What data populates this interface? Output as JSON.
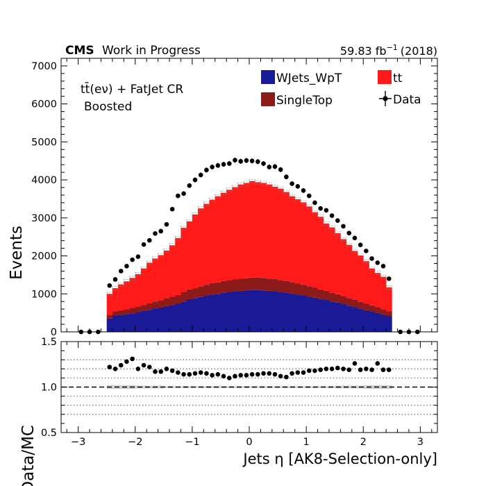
{
  "header": {
    "cms_label": "CMS",
    "cms_suffix": "Work in Progress",
    "lumi_value": "59.83 fb",
    "lumi_exponent": "−1",
    "lumi_year": "(2018)"
  },
  "region": {
    "line1_main": "tt̄(eν) + FatJet CR",
    "line2": "Boosted"
  },
  "chart_data": {
    "type": "bar",
    "xlabel": "Jets η [AK8-Selection-only]",
    "ylabel": "Events",
    "ratio_ylabel": "Data/MC",
    "xlim": [
      -3.3,
      3.3
    ],
    "ylim": [
      0,
      7200
    ],
    "ratio_ylim": [
      0.5,
      1.5
    ],
    "x_ticks": [
      "−3",
      "−2",
      "−1",
      "0",
      "1",
      "2",
      "3"
    ],
    "y_ticks": [
      "0",
      "1000",
      "2000",
      "3000",
      "4000",
      "5000",
      "6000",
      "7000"
    ],
    "ratio_y_ticks": [
      "0.5",
      "1.0",
      "1.5"
    ],
    "ratio_gridlines": [
      0.7,
      0.8,
      0.9,
      1.1,
      1.2,
      1.3
    ],
    "legend_position": "top-right",
    "bin_edges": [
      -2.5,
      -2.4,
      -2.3,
      -2.2,
      -2.1,
      -2.0,
      -1.9,
      -1.8,
      -1.7,
      -1.6,
      -1.5,
      -1.4,
      -1.3,
      -1.2,
      -1.1,
      -1.0,
      -0.9,
      -0.8,
      -0.7,
      -0.6,
      -0.5,
      -0.4,
      -0.3,
      -0.2,
      -0.1,
      0.0,
      0.1,
      0.2,
      0.3,
      0.4,
      0.5,
      0.6,
      0.7,
      0.8,
      0.9,
      1.0,
      1.1,
      1.2,
      1.3,
      1.4,
      1.5,
      1.6,
      1.7,
      1.8,
      1.9,
      2.0,
      2.1,
      2.2,
      2.3,
      2.4,
      2.5
    ],
    "series": [
      {
        "name": "WJets_WpT",
        "color": "#1a1a96",
        "legend_swatch": "#1a1a96",
        "values": [
          350,
          430,
          450,
          470,
          490,
          520,
          550,
          580,
          620,
          640,
          680,
          710,
          740,
          800,
          860,
          880,
          920,
          950,
          980,
          1000,
          1030,
          1050,
          1060,
          1080,
          1090,
          1100,
          1100,
          1090,
          1080,
          1070,
          1050,
          1030,
          1010,
          980,
          960,
          930,
          900,
          870,
          840,
          800,
          770,
          730,
          690,
          650,
          610,
          570,
          540,
          500,
          460,
          420
        ]
      },
      {
        "name": "SingleTop",
        "color": "#8b1a1a",
        "legend_swatch": "#8b1a1a",
        "values": [
          100,
          110,
          120,
          130,
          140,
          150,
          160,
          170,
          180,
          190,
          210,
          220,
          230,
          250,
          260,
          270,
          280,
          290,
          300,
          300,
          310,
          310,
          320,
          320,
          320,
          330,
          330,
          330,
          320,
          320,
          310,
          310,
          300,
          290,
          280,
          270,
          260,
          250,
          240,
          230,
          220,
          210,
          200,
          190,
          180,
          170,
          160,
          150,
          140,
          120
        ]
      },
      {
        "name": "tt",
        "color": "#ff1a1a",
        "legend_swatch": "#ff1a1a",
        "values": [
          550,
          610,
          680,
          730,
          790,
          850,
          960,
          1070,
          1130,
          1190,
          1250,
          1350,
          1500,
          1690,
          1790,
          1940,
          2050,
          2130,
          2200,
          2270,
          2320,
          2380,
          2430,
          2480,
          2510,
          2540,
          2510,
          2500,
          2480,
          2430,
          2410,
          2340,
          2260,
          2220,
          2170,
          2100,
          1990,
          1910,
          1770,
          1720,
          1610,
          1500,
          1400,
          1290,
          1220,
          1120,
          970,
          900,
          850,
          630
        ]
      }
    ],
    "data": {
      "name": "Data",
      "values": [
        1220,
        1380,
        1600,
        1730,
        1900,
        1980,
        2300,
        2410,
        2590,
        2650,
        2830,
        3230,
        3580,
        3640,
        3850,
        4000,
        4130,
        4260,
        4340,
        4380,
        4410,
        4430,
        4520,
        4490,
        4510,
        4500,
        4480,
        4430,
        4340,
        4350,
        4270,
        4080,
        3900,
        3830,
        3720,
        3580,
        3400,
        3250,
        3200,
        3060,
        2930,
        2780,
        2600,
        2470,
        2290,
        2130,
        1930,
        1820,
        1730,
        1400
      ],
      "outside_x": [
        -2.95,
        -2.8,
        -2.65,
        2.65,
        2.8,
        2.95
      ],
      "outside_values": [
        0,
        0,
        0,
        0,
        0,
        0
      ]
    },
    "ratio": {
      "values": [
        1.22,
        1.2,
        1.24,
        1.28,
        1.31,
        1.2,
        1.24,
        1.22,
        1.17,
        1.17,
        1.2,
        1.18,
        1.16,
        1.14,
        1.14,
        1.15,
        1.16,
        1.15,
        1.13,
        1.14,
        1.12,
        1.1,
        1.12,
        1.13,
        1.13,
        1.14,
        1.14,
        1.15,
        1.15,
        1.14,
        1.12,
        1.11,
        1.15,
        1.16,
        1.16,
        1.18,
        1.18,
        1.19,
        1.2,
        1.2,
        1.21,
        1.2,
        1.19,
        1.26,
        1.19,
        1.2,
        1.19,
        1.26,
        1.19,
        1.19
      ],
      "unc_band": [
        0.02,
        0.02,
        0.02,
        0.02,
        0.02,
        0.015,
        0.015,
        0.015,
        0.015,
        0.015,
        0.01,
        0.01,
        0.01,
        0.01,
        0.01,
        0.01,
        0.01,
        0.01,
        0.01,
        0.01,
        0.01,
        0.01,
        0.01,
        0.01,
        0.01,
        0.01,
        0.01,
        0.01,
        0.01,
        0.01,
        0.01,
        0.01,
        0.01,
        0.01,
        0.01,
        0.01,
        0.01,
        0.01,
        0.01,
        0.01,
        0.015,
        0.015,
        0.015,
        0.015,
        0.015,
        0.02,
        0.02,
        0.02,
        0.02,
        0.02
      ]
    }
  }
}
